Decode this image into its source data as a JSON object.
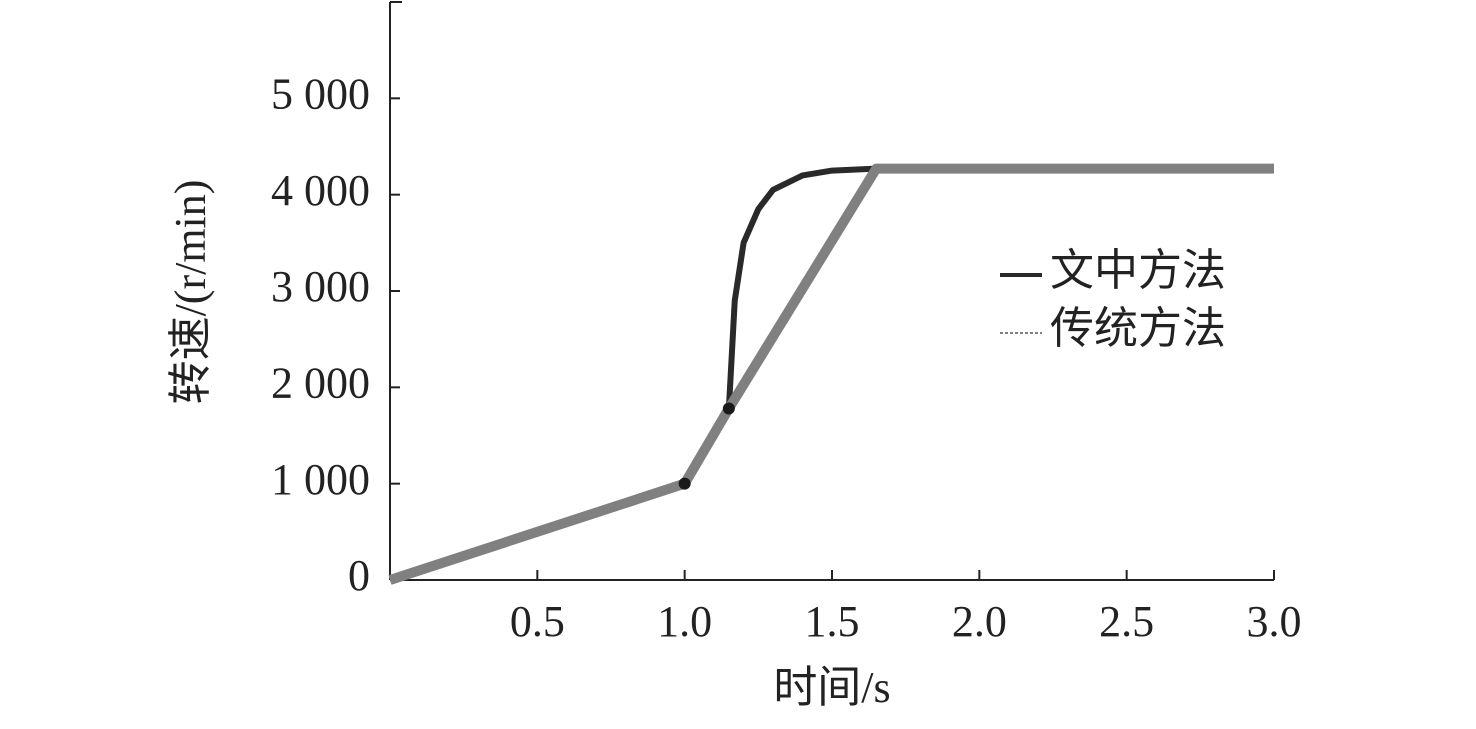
{
  "chart_data": {
    "type": "line",
    "x_label": "时间/s",
    "y_label": "转速/(r/min)",
    "xlim": [
      0,
      3.0
    ],
    "xticks": [
      0.5,
      {
        "value": 1.0,
        "label": "1.0"
      },
      1.5,
      {
        "value": 2.0,
        "label": "2.0"
      },
      2.5,
      {
        "value": 3.0,
        "label": "3.0"
      }
    ],
    "ylim": [
      0,
      6000
    ],
    "yticks": [
      0,
      {
        "value": 1000,
        "label": "1 000"
      },
      {
        "value": 2000,
        "label": "2 000"
      },
      {
        "value": 3000,
        "label": "3 000"
      },
      {
        "value": 4000,
        "label": "4 000"
      },
      {
        "value": 5000,
        "label": "5 000"
      }
    ],
    "grid": false,
    "legend": "right",
    "series": [
      {
        "name": "文中方法",
        "color": "#2a2a2a",
        "x": [
          0,
          1.0,
          1.15,
          1.17,
          1.2,
          1.25,
          1.3,
          1.4,
          1.5,
          1.65,
          2.0,
          3.0
        ],
        "values": [
          0,
          1000,
          1780,
          2900,
          3500,
          3850,
          4050,
          4200,
          4250,
          4270,
          4270,
          4270
        ]
      },
      {
        "name": "传统方法",
        "color": "#808080",
        "x": [
          0,
          1.0,
          1.15,
          1.65,
          3.0
        ],
        "values": [
          0,
          1000,
          1780,
          4270,
          4270
        ]
      }
    ],
    "points": {
      "x": [
        1.0,
        1.15
      ],
      "values": [
        1000,
        1780
      ],
      "color": "#1a1a1a"
    }
  }
}
